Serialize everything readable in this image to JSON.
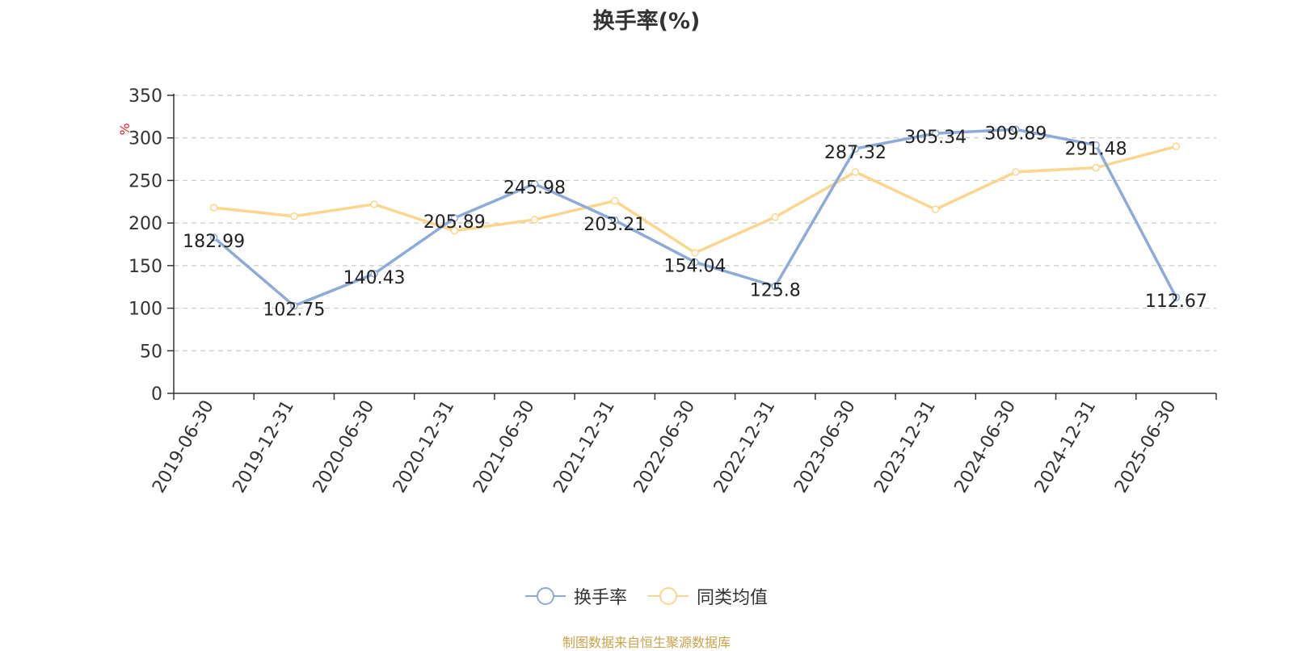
{
  "title": "换手率(%)",
  "source_note": "制图数据来自恒生聚源数据库",
  "colors": {
    "series_primary": "#8eaad8",
    "series_secondary": "#fcd68e",
    "grid": "#cccccc",
    "axis": "#333333",
    "unit_label": "#e02020"
  },
  "chart_data": {
    "type": "line",
    "title": "换手率(%)",
    "ylabel": "%",
    "xlabel": "",
    "ylim": [
      0,
      350
    ],
    "yticks": [
      0,
      50,
      100,
      150,
      200,
      250,
      300,
      350
    ],
    "grid": true,
    "legend_position": "bottom",
    "categories": [
      "2019-06-30",
      "2019-12-31",
      "2020-06-30",
      "2020-12-31",
      "2021-06-30",
      "2021-12-31",
      "2022-06-30",
      "2022-12-31",
      "2023-06-30",
      "2023-12-31",
      "2024-06-30",
      "2024-12-31",
      "2025-06-30"
    ],
    "series": [
      {
        "name": "换手率",
        "values": [
          182.99,
          102.75,
          140.43,
          205.89,
          245.98,
          203.21,
          154.04,
          125.8,
          287.32,
          305.34,
          309.89,
          291.48,
          112.67
        ],
        "data_labels": [
          "182.99",
          "102.75",
          "140.43",
          "205.89",
          "245.98",
          "203.21",
          "154.04",
          "125.8",
          "287.32",
          "305.34",
          "309.89",
          "291.48",
          "112.67"
        ]
      },
      {
        "name": "同类均值",
        "values": [
          218,
          208,
          222,
          191,
          204,
          226,
          165,
          207,
          260,
          216,
          260,
          265,
          290
        ]
      }
    ]
  }
}
